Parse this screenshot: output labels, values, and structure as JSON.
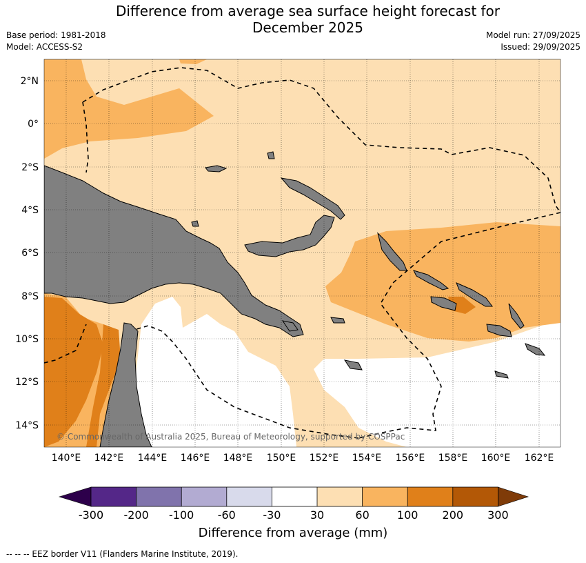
{
  "title": {
    "line1": "Difference from average sea surface height forecast for",
    "line2": "December 2025"
  },
  "meta": {
    "base_period": "Base period: 1981-2018",
    "model": "Model: ACCESS-S2",
    "model_run": "Model run: 27/09/2025",
    "issued": "Issued: 29/09/2025"
  },
  "map": {
    "lon_labels": [
      "140°E",
      "142°E",
      "144°E",
      "146°E",
      "148°E",
      "150°E",
      "152°E",
      "154°E",
      "156°E",
      "158°E",
      "160°E",
      "162°E"
    ],
    "lat_labels": [
      "2°N",
      "0°",
      "2°S",
      "4°S",
      "6°S",
      "8°S",
      "10°S",
      "12°S",
      "14°S"
    ],
    "copyright": "© Commonwealth of Australia 2025, Bureau of Meteorology, supported by COSPPac",
    "colors": {
      "land": "#808080",
      "ocean_30_60": "#fddfb3",
      "ocean_60_100": "#f9b45f",
      "ocean_100_200": "#e0801a",
      "ocean_neutral": "#ffffff"
    }
  },
  "colorbar": {
    "title": "Difference from average (mm)",
    "labels": [
      "-300",
      "-200",
      "-100",
      "-60",
      "-30",
      "30",
      "60",
      "100",
      "200",
      "300"
    ],
    "colors": [
      "#2d004b",
      "#542788",
      "#8073ac",
      "#b2abd2",
      "#d8daeb",
      "#ffffff",
      "#fddfb3",
      "#f9b45f",
      "#e0801a",
      "#b35806",
      "#7f3b08"
    ]
  },
  "legend_note": "--  --  -- EEZ border V11 (Flanders Marine Institute, 2019)."
}
